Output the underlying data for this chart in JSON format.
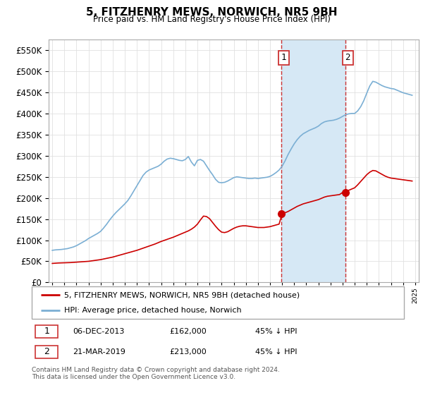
{
  "title": "5, FITZHENRY MEWS, NORWICH, NR5 9BH",
  "subtitle": "Price paid vs. HM Land Registry's House Price Index (HPI)",
  "hpi_label": "HPI: Average price, detached house, Norwich",
  "property_label": "5, FITZHENRY MEWS, NORWICH, NR5 9BH (detached house)",
  "hpi_color": "#7bafd4",
  "property_color": "#cc0000",
  "highlight_color": "#d6e8f5",
  "dashed_line_color": "#cc3333",
  "annotation1_date": "06-DEC-2013",
  "annotation1_price": "£162,000",
  "annotation1_text": "45% ↓ HPI",
  "annotation2_date": "21-MAR-2019",
  "annotation2_price": "£213,000",
  "annotation2_text": "45% ↓ HPI",
  "marker1_year": 2013.92,
  "marker1_value": 162000,
  "marker2_year": 2019.22,
  "marker2_value": 213000,
  "footer": "Contains HM Land Registry data © Crown copyright and database right 2024.\nThis data is licensed under the Open Government Licence v3.0.",
  "ylim": [
    0,
    575000
  ],
  "xlim_start": 1994.7,
  "xlim_end": 2025.3,
  "highlight_x1": 2013.92,
  "highlight_x2": 2019.22,
  "hpi_years": [
    1995.0,
    1995.25,
    1995.5,
    1995.75,
    1996.0,
    1996.25,
    1996.5,
    1996.75,
    1997.0,
    1997.25,
    1997.5,
    1997.75,
    1998.0,
    1998.25,
    1998.5,
    1998.75,
    1999.0,
    1999.25,
    1999.5,
    1999.75,
    2000.0,
    2000.25,
    2000.5,
    2000.75,
    2001.0,
    2001.25,
    2001.5,
    2001.75,
    2002.0,
    2002.25,
    2002.5,
    2002.75,
    2003.0,
    2003.25,
    2003.5,
    2003.75,
    2004.0,
    2004.25,
    2004.5,
    2004.75,
    2005.0,
    2005.25,
    2005.5,
    2005.75,
    2006.0,
    2006.25,
    2006.5,
    2006.75,
    2007.0,
    2007.25,
    2007.5,
    2007.75,
    2008.0,
    2008.25,
    2008.5,
    2008.75,
    2009.0,
    2009.25,
    2009.5,
    2009.75,
    2010.0,
    2010.25,
    2010.5,
    2010.75,
    2011.0,
    2011.25,
    2011.5,
    2011.75,
    2012.0,
    2012.25,
    2012.5,
    2012.75,
    2013.0,
    2013.25,
    2013.5,
    2013.75,
    2014.0,
    2014.25,
    2014.5,
    2014.75,
    2015.0,
    2015.25,
    2015.5,
    2015.75,
    2016.0,
    2016.25,
    2016.5,
    2016.75,
    2017.0,
    2017.25,
    2017.5,
    2017.75,
    2018.0,
    2018.25,
    2018.5,
    2018.75,
    2019.0,
    2019.25,
    2019.5,
    2019.75,
    2020.0,
    2020.25,
    2020.5,
    2020.75,
    2021.0,
    2021.25,
    2021.5,
    2021.75,
    2022.0,
    2022.25,
    2022.5,
    2022.75,
    2023.0,
    2023.25,
    2023.5,
    2023.75,
    2024.0,
    2024.25,
    2024.5,
    2024.75
  ],
  "hpi_values": [
    76000,
    77000,
    77500,
    78000,
    79000,
    80000,
    82000,
    84000,
    87000,
    91000,
    95000,
    99000,
    104000,
    108000,
    112000,
    116000,
    121000,
    129000,
    138000,
    148000,
    157000,
    165000,
    172000,
    179000,
    186000,
    194000,
    205000,
    217000,
    229000,
    241000,
    253000,
    261000,
    266000,
    269000,
    272000,
    275000,
    280000,
    287000,
    292000,
    294000,
    293000,
    291000,
    289000,
    288000,
    291000,
    298000,
    285000,
    276000,
    289000,
    291000,
    287000,
    276000,
    265000,
    255000,
    244000,
    237000,
    236000,
    237000,
    240000,
    244000,
    248000,
    250000,
    249000,
    248000,
    247000,
    246000,
    246000,
    247000,
    246000,
    247000,
    248000,
    249000,
    251000,
    255000,
    260000,
    266000,
    275000,
    288000,
    303000,
    316000,
    328000,
    338000,
    346000,
    352000,
    356000,
    360000,
    363000,
    366000,
    370000,
    376000,
    380000,
    382000,
    383000,
    384000,
    386000,
    389000,
    393000,
    397000,
    399000,
    400000,
    400000,
    406000,
    416000,
    430000,
    448000,
    465000,
    476000,
    474000,
    470000,
    466000,
    463000,
    461000,
    459000,
    458000,
    455000,
    452000,
    449000,
    447000,
    445000,
    443000
  ],
  "prop_years": [
    1995.0,
    1995.5,
    1996.0,
    1996.5,
    1997.0,
    1997.5,
    1998.0,
    1998.5,
    1999.0,
    1999.5,
    2000.0,
    2000.5,
    2001.0,
    2001.5,
    2002.0,
    2002.5,
    2003.0,
    2003.5,
    2004.0,
    2004.5,
    2005.0,
    2005.25,
    2005.5,
    2005.75,
    2006.0,
    2006.25,
    2006.5,
    2006.75,
    2007.0,
    2007.25,
    2007.5,
    2007.75,
    2008.0,
    2008.25,
    2008.5,
    2008.75,
    2009.0,
    2009.25,
    2009.5,
    2009.75,
    2010.0,
    2010.25,
    2010.5,
    2010.75,
    2011.0,
    2011.25,
    2011.5,
    2011.75,
    2012.0,
    2012.25,
    2012.5,
    2012.75,
    2013.0,
    2013.25,
    2013.5,
    2013.75,
    2014.0,
    2014.25,
    2014.5,
    2014.75,
    2015.0,
    2015.25,
    2015.5,
    2015.75,
    2016.0,
    2016.25,
    2016.5,
    2016.75,
    2017.0,
    2017.25,
    2017.5,
    2017.75,
    2018.0,
    2018.25,
    2018.5,
    2018.75,
    2019.0,
    2019.25,
    2019.5,
    2019.75,
    2020.0,
    2020.25,
    2020.5,
    2020.75,
    2021.0,
    2021.25,
    2021.5,
    2021.75,
    2022.0,
    2022.25,
    2022.5,
    2022.75,
    2023.0,
    2023.25,
    2023.5,
    2023.75,
    2024.0,
    2024.25,
    2024.5,
    2024.75
  ],
  "prop_values": [
    45000,
    46000,
    46500,
    47000,
    48000,
    49000,
    50000,
    52000,
    54000,
    57000,
    60000,
    64000,
    68000,
    72000,
    76000,
    81000,
    86000,
    91000,
    97000,
    102000,
    107000,
    110000,
    113000,
    116000,
    119000,
    122000,
    126000,
    131000,
    138000,
    148000,
    157000,
    156000,
    151000,
    142000,
    133000,
    125000,
    119000,
    118000,
    120000,
    124000,
    128000,
    131000,
    133000,
    134000,
    134000,
    133000,
    132000,
    131000,
    130000,
    130000,
    130000,
    131000,
    132000,
    134000,
    136000,
    138000,
    162000,
    165000,
    168000,
    172000,
    176000,
    180000,
    183000,
    186000,
    188000,
    190000,
    192000,
    194000,
    196000,
    199000,
    202000,
    204000,
    205000,
    206000,
    207000,
    208000,
    213000,
    215000,
    218000,
    221000,
    224000,
    231000,
    239000,
    247000,
    255000,
    261000,
    265000,
    264000,
    260000,
    256000,
    252000,
    249000,
    247000,
    246000,
    245000,
    244000,
    243000,
    242000,
    241000,
    240000
  ]
}
